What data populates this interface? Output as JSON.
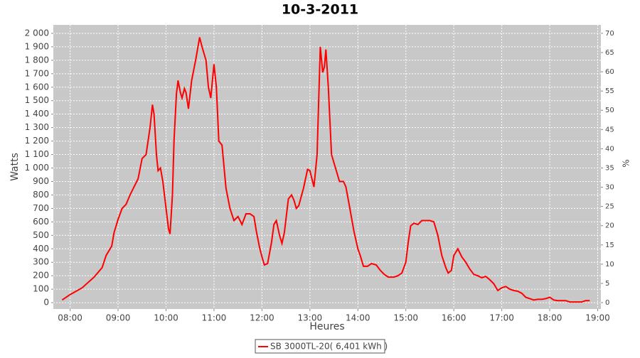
{
  "chart_data": {
    "type": "line",
    "title": "10-3-2011",
    "xlabel": "Heures",
    "ylabel": "Watts",
    "y2label": "%",
    "x": [
      "07:50",
      "08:00",
      "08:15",
      "08:30",
      "08:40",
      "08:45",
      "08:52",
      "08:55",
      "09:00",
      "09:05",
      "09:10",
      "09:15",
      "09:20",
      "09:25",
      "09:30",
      "09:35",
      "09:40",
      "09:43",
      "09:45",
      "09:48",
      "09:50",
      "09:53",
      "09:56",
      "10:00",
      "10:03",
      "10:05",
      "10:08",
      "10:10",
      "10:13",
      "10:15",
      "10:18",
      "10:20",
      "10:23",
      "10:25",
      "10:28",
      "10:32",
      "10:37",
      "10:42",
      "10:45",
      "10:50",
      "10:53",
      "10:56",
      "11:00",
      "11:03",
      "11:06",
      "11:10",
      "11:15",
      "11:20",
      "11:25",
      "11:30",
      "11:35",
      "11:40",
      "11:45",
      "11:50",
      "11:53",
      "11:57",
      "12:00",
      "12:03",
      "12:07",
      "12:12",
      "12:15",
      "12:18",
      "12:22",
      "12:25",
      "12:28",
      "12:33",
      "12:37",
      "12:40",
      "12:43",
      "12:46",
      "12:52",
      "12:57",
      "13:00",
      "13:05",
      "13:09",
      "13:13",
      "13:16",
      "13:18",
      "13:20",
      "13:23",
      "13:27",
      "13:32",
      "13:37",
      "13:42",
      "13:45",
      "13:50",
      "13:55",
      "14:00",
      "14:03",
      "14:07",
      "14:12",
      "14:17",
      "14:23",
      "14:28",
      "14:33",
      "14:38",
      "14:45",
      "14:50",
      "14:55",
      "15:00",
      "15:03",
      "15:06",
      "15:10",
      "15:15",
      "15:20",
      "15:25",
      "15:30",
      "15:35",
      "15:40",
      "15:45",
      "15:50",
      "15:53",
      "15:57",
      "16:00",
      "16:05",
      "16:10",
      "16:15",
      "16:20",
      "16:25",
      "16:30",
      "16:35",
      "16:40",
      "16:45",
      "16:50",
      "16:55",
      "17:00",
      "17:05",
      "17:10",
      "17:15",
      "17:20",
      "17:25",
      "17:30",
      "17:35",
      "17:40",
      "17:45",
      "17:50",
      "17:55",
      "18:00",
      "18:05",
      "18:10",
      "18:15",
      "18:20",
      "18:25",
      "18:30",
      "18:40",
      "18:45",
      "18:50"
    ],
    "series": [
      {
        "name": "SB 3000TL-20( 6,401 kWh )",
        "color": "#ff0000",
        "values": [
          20,
          60,
          110,
          190,
          260,
          350,
          420,
          520,
          620,
          700,
          730,
          800,
          860,
          920,
          1070,
          1100,
          1300,
          1470,
          1400,
          1100,
          980,
          1000,
          900,
          700,
          550,
          510,
          800,
          1200,
          1550,
          1650,
          1560,
          1520,
          1590,
          1560,
          1440,
          1650,
          1800,
          1970,
          1900,
          1800,
          1600,
          1520,
          1770,
          1600,
          1200,
          1170,
          850,
          700,
          610,
          640,
          580,
          660,
          660,
          640,
          530,
          410,
          340,
          280,
          290,
          450,
          580,
          610,
          500,
          440,
          520,
          770,
          800,
          760,
          700,
          720,
          850,
          990,
          980,
          860,
          1100,
          1900,
          1710,
          1750,
          1880,
          1600,
          1100,
          1000,
          900,
          900,
          860,
          700,
          530,
          400,
          350,
          270,
          270,
          290,
          280,
          240,
          210,
          190,
          190,
          200,
          220,
          300,
          450,
          570,
          590,
          580,
          610,
          610,
          610,
          600,
          500,
          350,
          260,
          220,
          240,
          350,
          400,
          340,
          300,
          250,
          210,
          200,
          185,
          195,
          170,
          140,
          90,
          110,
          120,
          100,
          90,
          85,
          70,
          40,
          30,
          20,
          25,
          25,
          30,
          40,
          20,
          15,
          15,
          15,
          5,
          5,
          5,
          15,
          15
        ]
      }
    ],
    "xlim": [
      "07:39",
      "19:04"
    ],
    "xticks": [
      "08:00",
      "09:00",
      "10:00",
      "11:00",
      "12:00",
      "13:00",
      "14:00",
      "15:00",
      "16:00",
      "17:00",
      "18:00",
      "19:00"
    ],
    "ylim": [
      -47,
      2063
    ],
    "yticks": [
      0,
      100,
      200,
      300,
      400,
      500,
      600,
      700,
      800,
      900,
      {
        "value": 1000,
        "label": "1 000"
      },
      {
        "value": 1100,
        "label": "1 100"
      },
      {
        "value": 1200,
        "label": "1 200"
      },
      {
        "value": 1300,
        "label": "1 300"
      },
      {
        "value": 1400,
        "label": "1 400"
      },
      {
        "value": 1500,
        "label": "1 500"
      },
      {
        "value": 1600,
        "label": "1 600"
      },
      {
        "value": 1700,
        "label": "1 700"
      },
      {
        "value": 1800,
        "label": "1 800"
      },
      {
        "value": 1900,
        "label": "1 900"
      },
      {
        "value": 2000,
        "label": "2 000"
      }
    ],
    "y2lim": [
      -1.65,
      72.2
    ],
    "y2ticks": [
      0,
      5,
      10,
      15,
      20,
      25,
      30,
      35,
      40,
      45,
      50,
      55,
      60,
      65,
      70
    ],
    "grid": true
  }
}
